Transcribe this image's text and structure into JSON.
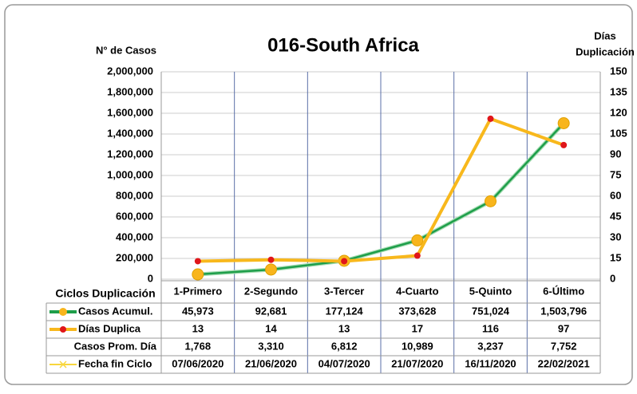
{
  "chart_data": {
    "type": "line",
    "title": "016-South Africa",
    "ylabel": "N° de Casos",
    "y2label": [
      "Días",
      "Duplicación"
    ],
    "table_header": "Ciclos Duplicación",
    "categories": [
      "1-Primero",
      "2-Segundo",
      "3-Tercer",
      "4-Cuarto",
      "5-Quinto",
      "6-Último"
    ],
    "ylim": [
      0,
      2000000
    ],
    "yticks": [
      {
        "value": 0,
        "label": "0"
      },
      {
        "value": 200000,
        "label": "200,000"
      },
      {
        "value": 400000,
        "label": "400,000"
      },
      {
        "value": 600000,
        "label": "600,000"
      },
      {
        "value": 800000,
        "label": "800,000"
      },
      {
        "value": 1000000,
        "label": "1,000,000"
      },
      {
        "value": 1200000,
        "label": "1,200,000"
      },
      {
        "value": 1400000,
        "label": "1,400,000"
      },
      {
        "value": 1600000,
        "label": "1,600,000"
      },
      {
        "value": 1800000,
        "label": "1,800,000"
      },
      {
        "value": 2000000,
        "label": "2,000,000"
      }
    ],
    "y2lim": [
      0,
      150
    ],
    "y2ticks": [
      0,
      15,
      30,
      45,
      60,
      75,
      90,
      105,
      120,
      135,
      150
    ],
    "series": [
      {
        "name": "Casos Acumul.",
        "color": "#1e9e4a",
        "marker_color": "#f8b51c",
        "values": [
          45973,
          92681,
          177124,
          373628,
          751024,
          1503796
        ],
        "value_labels": [
          "45,973",
          "92,681",
          "177,124",
          "373,628",
          "751,024",
          "1,503,796"
        ]
      },
      {
        "name": "Días Duplica",
        "color": "#f8b81c",
        "marker_color": "#e0161a",
        "axis": "y2",
        "values": [
          13,
          14,
          13,
          17,
          116,
          97
        ]
      },
      {
        "name": "Casos Prom. Día",
        "values": [
          1768,
          3310,
          6812,
          10989,
          3237,
          7752
        ],
        "value_labels": [
          "1,768",
          "3,310",
          "6,812",
          "10,989",
          "3,237",
          "7,752"
        ]
      },
      {
        "name": "Fecha fin Ciclo",
        "color": "#f8d63c",
        "labels": [
          "07/06/2020",
          "21/06/2020",
          "04/07/2020",
          "21/07/2020",
          "16/11/2020",
          "22/02/2021"
        ]
      }
    ]
  }
}
